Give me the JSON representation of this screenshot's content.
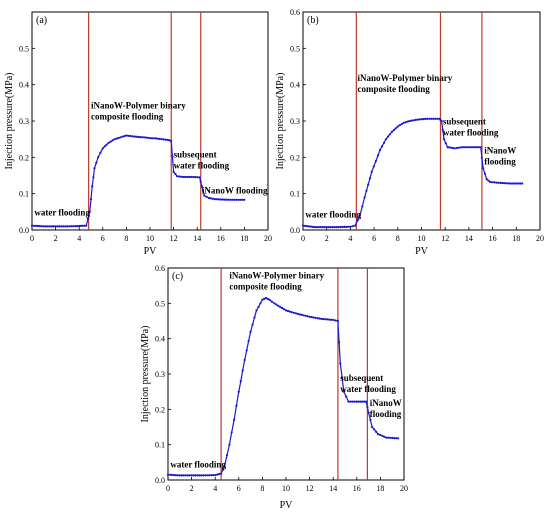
{
  "chart_data": [
    {
      "type": "line",
      "panel_label": "(a)",
      "xlabel": "PV",
      "ylabel": "Injection pressure(MPa)",
      "xlim": [
        0,
        20
      ],
      "ylim": [
        0,
        0.6
      ],
      "xticks": [
        0,
        2,
        4,
        6,
        8,
        10,
        12,
        14,
        16,
        18,
        20
      ],
      "yticks": [
        0.0,
        0.1,
        0.2,
        0.3,
        0.4,
        0.5
      ],
      "ytick_labels": [
        "0.0",
        "0.1",
        "0.2",
        "0.3",
        "0.4",
        "0.5"
      ],
      "series_color": "#1a1acc",
      "divider_color": "#c0392b",
      "dividers": [
        4.8,
        11.8,
        14.3
      ],
      "annotations": [
        {
          "lines": [
            "water flooding"
          ],
          "x": 0.2,
          "y": 0.04
        },
        {
          "lines": [
            "iNanoW-Polymer binary",
            "composite flooding"
          ],
          "x": 5.0,
          "y": 0.335
        },
        {
          "lines": [
            "subsequent",
            "water flooding"
          ],
          "x": 12.0,
          "y": 0.2
        },
        {
          "lines": [
            "iNanoW flooding"
          ],
          "x": 14.4,
          "y": 0.1
        }
      ],
      "x": [
        0,
        1,
        2,
        3,
        4,
        4.6,
        4.9,
        5.1,
        5.3,
        5.6,
        6,
        6.5,
        7,
        7.5,
        8,
        8.5,
        9,
        9.5,
        10,
        10.5,
        11,
        11.5,
        11.8,
        12.0,
        12.3,
        12.8,
        13.5,
        14.2,
        14.4,
        14.6,
        15,
        15.5,
        16,
        17,
        18
      ],
      "y": [
        0.012,
        0.01,
        0.01,
        0.01,
        0.011,
        0.012,
        0.05,
        0.12,
        0.17,
        0.2,
        0.225,
        0.24,
        0.25,
        0.255,
        0.26,
        0.258,
        0.256,
        0.255,
        0.253,
        0.252,
        0.25,
        0.248,
        0.245,
        0.16,
        0.148,
        0.146,
        0.146,
        0.145,
        0.12,
        0.095,
        0.088,
        0.085,
        0.084,
        0.083,
        0.083
      ]
    },
    {
      "type": "line",
      "panel_label": "(b)",
      "xlabel": "PV",
      "ylabel": "Injection pressure(MPa)",
      "xlim": [
        0,
        20
      ],
      "ylim": [
        0,
        0.6
      ],
      "xticks": [
        0,
        2,
        4,
        6,
        8,
        10,
        12,
        14,
        16,
        18,
        20
      ],
      "yticks": [
        0.0,
        0.1,
        0.2,
        0.3,
        0.4,
        0.5,
        0.6
      ],
      "ytick_labels": [
        "0.0",
        "0.1",
        "0.2",
        "0.3",
        "0.4",
        "0.5",
        "0.6"
      ],
      "series_color": "#1a1acc",
      "divider_color": "#c0392b",
      "dividers": [
        4.5,
        11.6,
        15.1
      ],
      "annotations": [
        {
          "lines": [
            "water flooding"
          ],
          "x": 0.2,
          "y": 0.035
        },
        {
          "lines": [
            "iNanoW-Polymer binary",
            "composite flooding"
          ],
          "x": 4.6,
          "y": 0.41
        },
        {
          "lines": [
            "subsequent",
            "water flooding"
          ],
          "x": 11.8,
          "y": 0.29
        },
        {
          "lines": [
            "iNanoW",
            "flooding"
          ],
          "x": 15.3,
          "y": 0.21
        }
      ],
      "x": [
        0,
        1,
        2,
        3,
        4,
        4.4,
        4.8,
        5.2,
        5.8,
        6.5,
        7,
        7.5,
        8,
        8.5,
        9,
        9.5,
        10,
        10.5,
        11,
        11.5,
        11.7,
        11.9,
        12.2,
        12.8,
        13.5,
        14.2,
        15.0,
        15.2,
        15.5,
        15.8,
        16.5,
        17.5,
        18.5
      ],
      "y": [
        0.012,
        0.008,
        0.008,
        0.008,
        0.009,
        0.012,
        0.04,
        0.09,
        0.16,
        0.22,
        0.25,
        0.27,
        0.285,
        0.295,
        0.3,
        0.303,
        0.305,
        0.306,
        0.306,
        0.306,
        0.3,
        0.25,
        0.228,
        0.225,
        0.228,
        0.228,
        0.228,
        0.17,
        0.14,
        0.132,
        0.13,
        0.128,
        0.128
      ]
    },
    {
      "type": "line",
      "panel_label": "(c)",
      "xlabel": "PV",
      "ylabel": "Injection pressure(MPa)",
      "xlim": [
        0,
        20
      ],
      "ylim": [
        0,
        0.6
      ],
      "xticks": [
        0,
        2,
        4,
        6,
        8,
        10,
        12,
        14,
        16,
        18,
        20
      ],
      "yticks": [
        0.0,
        0.1,
        0.2,
        0.3,
        0.4,
        0.5,
        0.6
      ],
      "ytick_labels": [
        "0.0",
        "0.1",
        "0.2",
        "0.3",
        "0.4",
        "0.5",
        "0.6"
      ],
      "series_color": "#1a1acc",
      "divider_color": "#c0392b",
      "dividers": [
        4.5,
        14.4,
        16.9
      ],
      "annotations": [
        {
          "lines": [
            "water flooding"
          ],
          "x": 0.2,
          "y": 0.035
        },
        {
          "lines": [
            "iNanoW-Polymer binary",
            "composite flooding"
          ],
          "x": 5.2,
          "y": 0.57
        },
        {
          "lines": [
            "subsequent",
            "water flooding"
          ],
          "x": 14.6,
          "y": 0.28
        },
        {
          "lines": [
            "iNanoW",
            "flooding"
          ],
          "x": 17.1,
          "y": 0.21
        }
      ],
      "x": [
        0,
        1,
        2,
        3,
        4,
        4.5,
        4.8,
        5.2,
        5.6,
        6,
        6.5,
        7,
        7.5,
        8,
        8.3,
        8.6,
        9,
        9.5,
        10,
        11,
        12,
        13,
        14,
        14.4,
        14.6,
        14.9,
        15.3,
        16,
        16.8,
        17.0,
        17.3,
        17.8,
        18.5,
        19.5
      ],
      "y": [
        0.015,
        0.013,
        0.013,
        0.013,
        0.014,
        0.018,
        0.04,
        0.1,
        0.17,
        0.25,
        0.34,
        0.42,
        0.48,
        0.51,
        0.515,
        0.51,
        0.5,
        0.49,
        0.48,
        0.47,
        0.462,
        0.456,
        0.453,
        0.45,
        0.33,
        0.25,
        0.222,
        0.222,
        0.222,
        0.19,
        0.15,
        0.13,
        0.12,
        0.118
      ]
    }
  ]
}
